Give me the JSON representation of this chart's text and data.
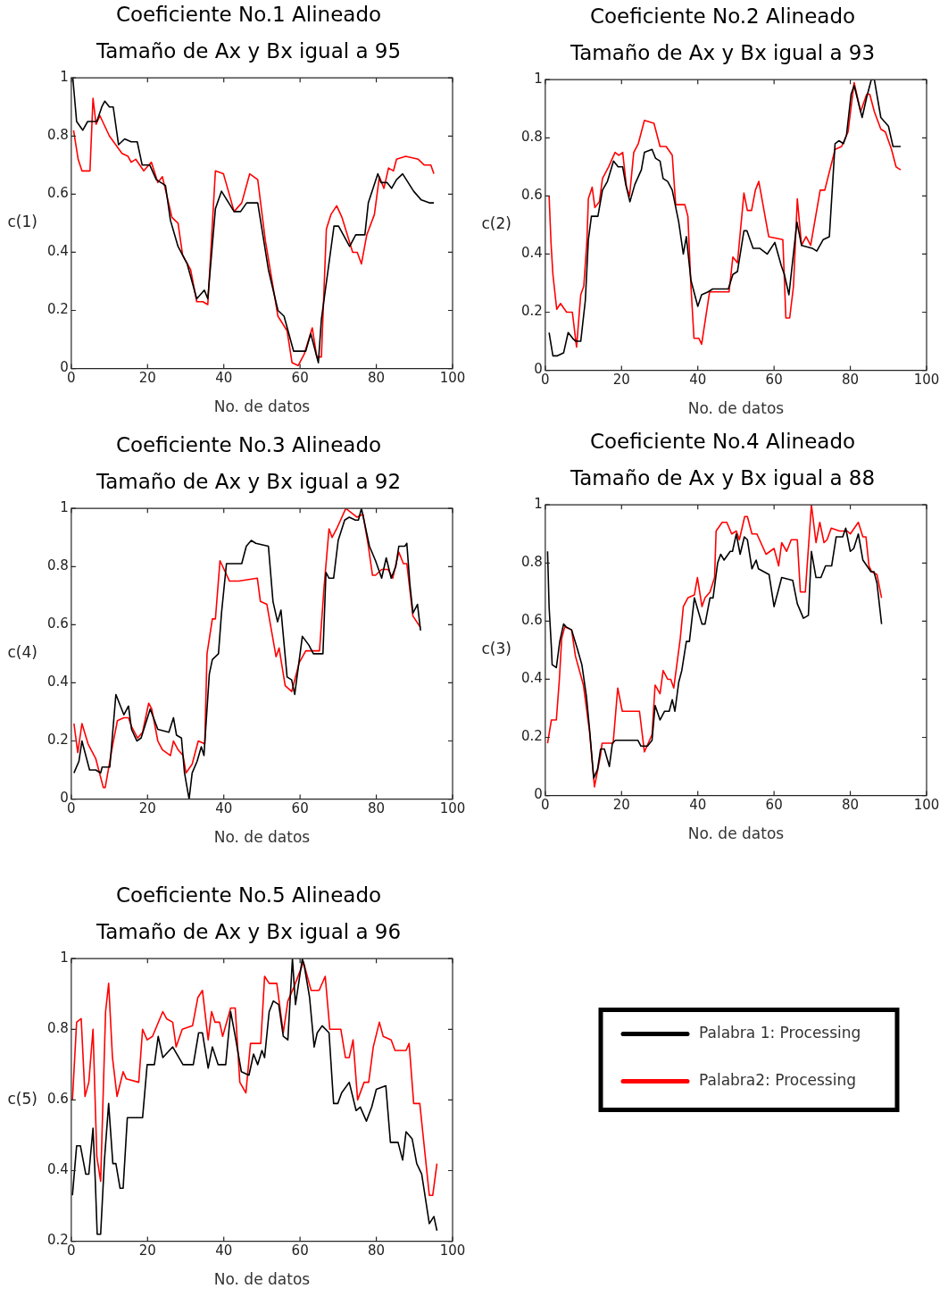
{
  "chart_data": [
    {
      "type": "line",
      "title": "Coeficiente No.1 Alineado",
      "subtitle": "Tamaño de Ax y Bx igual a 95",
      "xlabel": "No. de datos",
      "ylabel": "c(1)",
      "xlim": [
        0,
        100
      ],
      "xticks": [
        0,
        20,
        40,
        60,
        80,
        100
      ],
      "ylim": [
        0,
        1
      ],
      "yticks": [
        0,
        0.2,
        0.4,
        0.6,
        0.8,
        1
      ],
      "series": [
        {
          "color": "#000000",
          "x": [
            0.4,
            1.4,
            3.0,
            4.3,
            6.7,
            8,
            8.8,
            10,
            11,
            12.4,
            14,
            15.7,
            17.3,
            18.6,
            20.6,
            22.3,
            24.7,
            26,
            28,
            30.4,
            32.9,
            34.9,
            35.8,
            37.8,
            39.4,
            42.7,
            44.4,
            46,
            48.9,
            51.7,
            54.2,
            55.8,
            58.3,
            61.5,
            62.8,
            64.8,
            65.6,
            68.9,
            70.1,
            73,
            74.6,
            77,
            77.9,
            80.4,
            81.2,
            82.8,
            84,
            85.3,
            86.9,
            89.8,
            91.8,
            93.9,
            95.1
          ],
          "values": [
            1.0,
            0.85,
            0.82,
            0.85,
            0.85,
            0.9,
            0.92,
            0.9,
            0.9,
            0.77,
            0.79,
            0.78,
            0.78,
            0.7,
            0.7,
            0.65,
            0.63,
            0.51,
            0.42,
            0.36,
            0.24,
            0.27,
            0.24,
            0.55,
            0.61,
            0.54,
            0.54,
            0.57,
            0.57,
            0.34,
            0.2,
            0.18,
            0.06,
            0.06,
            0.12,
            0.02,
            0.17,
            0.49,
            0.49,
            0.42,
            0.46,
            0.46,
            0.57,
            0.67,
            0.64,
            0.64,
            0.62,
            0.65,
            0.67,
            0.61,
            0.58,
            0.57,
            0.57
          ]
        },
        {
          "color": "#ff0000",
          "x": [
            0.6,
            1.8,
            2.8,
            4.9,
            5.7,
            6.5,
            7.5,
            10,
            13.3,
            14.9,
            15.7,
            16.9,
            19,
            21,
            22.7,
            23.9,
            26.4,
            28,
            29.2,
            31.3,
            32.9,
            34.5,
            35.8,
            37.8,
            39.9,
            41,
            42.7,
            44.7,
            46.8,
            48.9,
            50.9,
            54.2,
            56.6,
            57.9,
            59.5,
            61.1,
            63.2,
            64.4,
            65.6,
            66.9,
            68.1,
            69.6,
            71,
            73.8,
            75,
            76.1,
            77.5,
            79.5,
            80.8,
            82,
            83.2,
            84.5,
            85.3,
            87.7,
            91,
            92.6,
            94.3,
            95.1
          ],
          "values": [
            0.82,
            0.72,
            0.68,
            0.68,
            0.93,
            0.84,
            0.87,
            0.8,
            0.74,
            0.73,
            0.71,
            0.72,
            0.68,
            0.71,
            0.64,
            0.66,
            0.52,
            0.5,
            0.39,
            0.34,
            0.23,
            0.23,
            0.22,
            0.68,
            0.67,
            0.62,
            0.54,
            0.57,
            0.67,
            0.65,
            0.44,
            0.18,
            0.13,
            0.02,
            0.01,
            0.05,
            0.14,
            0.04,
            0.04,
            0.48,
            0.53,
            0.56,
            0.52,
            0.4,
            0.4,
            0.36,
            0.46,
            0.53,
            0.66,
            0.62,
            0.69,
            0.68,
            0.72,
            0.73,
            0.72,
            0.7,
            0.7,
            0.67
          ]
        }
      ]
    },
    {
      "type": "line",
      "title": "Coeficiente No.2 Alineado",
      "subtitle": "Tamaño de Ax y Bx igual a 93",
      "xlabel": "No. de datos",
      "ylabel": "c(2)",
      "xlim": [
        0,
        100
      ],
      "xticks": [
        0,
        20,
        40,
        60,
        80,
        100
      ],
      "ylim": [
        0,
        1
      ],
      "yticks": [
        0,
        0.2,
        0.4,
        0.6,
        0.8,
        1
      ],
      "series": [
        {
          "color": "#000000",
          "x": [
            1,
            2,
            3.2,
            4.8,
            6,
            7.2,
            8,
            9.3,
            10.5,
            11.3,
            12.1,
            13.8,
            15,
            16.3,
            17.9,
            19.1,
            20.3,
            21.1,
            22.2,
            23.5,
            25.2,
            26,
            28,
            28.9,
            30.1,
            30.9,
            32.1,
            33.3,
            35,
            36.2,
            37,
            38.2,
            40,
            41,
            42.7,
            43.9,
            48,
            49.2,
            50.4,
            52.1,
            52.9,
            54.5,
            56.2,
            58.2,
            60.2,
            61.9,
            62.7,
            63.9,
            66,
            67.2,
            70,
            71.2,
            72.9,
            74.5,
            76,
            77,
            78.2,
            79,
            80.2,
            81,
            83.1,
            84.3,
            85.5,
            86.3,
            88,
            90,
            91.2,
            93.2
          ],
          "values": [
            0.13,
            0.05,
            0.05,
            0.06,
            0.13,
            0.11,
            0.1,
            0.1,
            0.24,
            0.45,
            0.53,
            0.53,
            0.62,
            0.65,
            0.72,
            0.7,
            0.7,
            0.64,
            0.58,
            0.64,
            0.69,
            0.75,
            0.76,
            0.73,
            0.72,
            0.66,
            0.65,
            0.62,
            0.51,
            0.4,
            0.46,
            0.31,
            0.22,
            0.26,
            0.27,
            0.28,
            0.28,
            0.33,
            0.34,
            0.48,
            0.48,
            0.42,
            0.42,
            0.4,
            0.44,
            0.36,
            0.33,
            0.26,
            0.51,
            0.43,
            0.42,
            0.41,
            0.45,
            0.46,
            0.78,
            0.79,
            0.78,
            0.81,
            0.95,
            0.98,
            0.87,
            0.94,
            1.0,
            1.0,
            0.87,
            0.84,
            0.77,
            0.77
          ]
        },
        {
          "color": "#ff0000",
          "x": [
            1,
            1.5,
            2,
            3,
            4,
            5.6,
            7.1,
            8.2,
            9.3,
            10.1,
            10.9,
            11.3,
            12.3,
            13,
            14.2,
            15,
            16.6,
            18.3,
            19.3,
            20.3,
            21.3,
            22.1,
            23.2,
            24.4,
            26,
            28.5,
            30.1,
            31.7,
            33.3,
            34.2,
            36.6,
            37.4,
            38.2,
            39,
            40.3,
            41,
            43.1,
            48.2,
            49.2,
            50.4,
            52.1,
            53,
            54.1,
            55.1,
            56,
            58.6,
            62.3,
            63.1,
            64.1,
            65.1,
            66.1,
            67.2,
            68.4,
            69.6,
            72.1,
            73.3,
            76,
            77.7,
            79.4,
            81,
            82.7,
            84.3,
            85.1,
            86.3,
            88,
            89.2,
            90.8,
            92,
            93.2
          ],
          "values": [
            0.6,
            0.44,
            0.33,
            0.21,
            0.23,
            0.2,
            0.2,
            0.08,
            0.26,
            0.29,
            0.44,
            0.59,
            0.63,
            0.56,
            0.58,
            0.66,
            0.7,
            0.75,
            0.74,
            0.75,
            0.63,
            0.6,
            0.75,
            0.78,
            0.86,
            0.85,
            0.77,
            0.77,
            0.74,
            0.57,
            0.57,
            0.53,
            0.29,
            0.11,
            0.11,
            0.09,
            0.27,
            0.27,
            0.39,
            0.37,
            0.61,
            0.55,
            0.55,
            0.62,
            0.65,
            0.46,
            0.45,
            0.18,
            0.18,
            0.29,
            0.59,
            0.43,
            0.46,
            0.43,
            0.62,
            0.62,
            0.76,
            0.77,
            0.82,
            0.99,
            0.89,
            0.95,
            0.95,
            0.89,
            0.83,
            0.82,
            0.76,
            0.7,
            0.69
          ]
        }
      ]
    },
    {
      "type": "line",
      "title": "Coeficiente No.3 Alineado",
      "subtitle": "Tamaño de Ax y Bx igual a 92",
      "xlabel": "No. de datos",
      "ylabel": "c(4)",
      "xlim": [
        0,
        100
      ],
      "xticks": [
        0,
        20,
        40,
        60,
        80,
        100
      ],
      "ylim": [
        0,
        1
      ],
      "yticks": [
        0,
        0.2,
        0.4,
        0.6,
        0.8,
        1
      ],
      "series": [
        {
          "color": "#000000",
          "x": [
            0.7,
            2,
            2.8,
            4.8,
            6.4,
            7.7,
            8.1,
            10.1,
            11.7,
            13.8,
            15,
            15.8,
            17.2,
            18.3,
            20.7,
            22.7,
            25.6,
            26.8,
            27.6,
            28.9,
            29.7,
            30.9,
            31.7,
            33,
            34.1,
            34.8,
            36.2,
            37,
            38.6,
            39.4,
            40.7,
            42.7,
            44.7,
            45.9,
            47.2,
            48.4,
            51.7,
            52.9,
            54.1,
            55,
            56.6,
            57.8,
            58.6,
            60.6,
            62.3,
            63.5,
            66,
            66.8,
            67.6,
            68.8,
            70,
            71.7,
            72.9,
            74.5,
            75.3,
            76.1,
            78.2,
            79.8,
            81.4,
            82.6,
            83.9,
            85.1,
            85.9,
            87.5,
            88,
            88.8,
            89.6,
            90.8,
            91.6
          ],
          "values": [
            0.09,
            0.13,
            0.2,
            0.1,
            0.1,
            0.09,
            0.11,
            0.11,
            0.36,
            0.29,
            0.32,
            0.24,
            0.2,
            0.21,
            0.31,
            0.24,
            0.23,
            0.28,
            0.22,
            0.21,
            0.09,
            0.0,
            0.09,
            0.13,
            0.18,
            0.15,
            0.43,
            0.48,
            0.5,
            0.64,
            0.81,
            0.81,
            0.81,
            0.87,
            0.89,
            0.88,
            0.87,
            0.68,
            0.61,
            0.65,
            0.42,
            0.41,
            0.36,
            0.56,
            0.53,
            0.5,
            0.5,
            0.78,
            0.76,
            0.76,
            0.89,
            0.96,
            0.97,
            0.96,
            0.96,
            1.0,
            0.87,
            0.82,
            0.76,
            0.83,
            0.76,
            0.8,
            0.87,
            0.87,
            0.88,
            0.74,
            0.64,
            0.67,
            0.58
          ]
        },
        {
          "color": "#ff0000",
          "x": [
            0.7,
            1.7,
            2.8,
            4.4,
            6.4,
            8.4,
            8.9,
            10.9,
            12.1,
            13.8,
            15,
            15.8,
            17.4,
            18.7,
            20.3,
            21.1,
            22.7,
            23.9,
            26,
            26.8,
            28,
            29.3,
            30.1,
            31.7,
            33.3,
            35,
            35.6,
            37,
            37.8,
            39,
            41.5,
            43.9,
            48.8,
            49.6,
            51.3,
            53.7,
            54.5,
            56.1,
            57.8,
            59.8,
            61.5,
            65.1,
            66.3,
            67.6,
            68.4,
            69.6,
            72,
            74.9,
            76.5,
            77.8,
            79,
            79.8,
            81.4,
            83.1,
            84.3,
            85.9,
            87.1,
            88,
            89.6,
            91.6
          ],
          "values": [
            0.26,
            0.16,
            0.26,
            0.19,
            0.14,
            0.04,
            0.04,
            0.19,
            0.27,
            0.28,
            0.28,
            0.25,
            0.21,
            0.23,
            0.33,
            0.31,
            0.2,
            0.17,
            0.15,
            0.2,
            0.17,
            0.15,
            0.09,
            0.12,
            0.2,
            0.19,
            0.5,
            0.62,
            0.62,
            0.82,
            0.75,
            0.75,
            0.76,
            0.68,
            0.67,
            0.49,
            0.52,
            0.39,
            0.37,
            0.47,
            0.51,
            0.51,
            0.73,
            0.93,
            0.9,
            0.93,
            1.0,
            0.97,
            0.98,
            0.88,
            0.77,
            0.77,
            0.79,
            0.79,
            0.76,
            0.85,
            0.81,
            0.81,
            0.63,
            0.59
          ]
        }
      ]
    },
    {
      "type": "line",
      "title": "Coeficiente No.4 Alineado",
      "subtitle": "Tamaño de Ax y Bx igual a 88",
      "xlabel": "No. de datos",
      "ylabel": "c(3)",
      "xlim": [
        0,
        100
      ],
      "xticks": [
        0,
        20,
        40,
        60,
        80,
        100
      ],
      "ylim": [
        0,
        1
      ],
      "yticks": [
        0,
        0.2,
        0.4,
        0.6,
        0.8,
        1
      ],
      "series": [
        {
          "color": "#000000",
          "x": [
            0.6,
            1,
            1.6,
            1.8,
            2.9,
            3.8,
            4.8,
            5.5,
            6.9,
            8.3,
            9.6,
            10.8,
            11.6,
            12.7,
            13.7,
            14.5,
            15.5,
            16.8,
            17.6,
            18.4,
            24.3,
            25.1,
            26.8,
            28,
            28.8,
            30.1,
            31.3,
            32.5,
            33.3,
            34,
            35,
            35.8,
            37,
            37.8,
            39.1,
            41.1,
            41.9,
            43.2,
            44,
            45.2,
            46,
            46.9,
            48.5,
            49.1,
            50.1,
            51.1,
            52.2,
            53,
            54.2,
            55.3,
            55.9,
            58.7,
            60,
            62,
            64.9,
            66.1,
            67.7,
            69,
            69.8,
            71,
            72.3,
            73.5,
            75.1,
            76.3,
            78,
            78.8,
            80,
            80.9,
            82.1,
            83.3,
            85.4,
            86.2,
            87,
            88.2
          ],
          "values": [
            0.84,
            0.65,
            0.51,
            0.45,
            0.44,
            0.53,
            0.59,
            0.58,
            0.57,
            0.51,
            0.45,
            0.34,
            0.23,
            0.06,
            0.09,
            0.16,
            0.16,
            0.1,
            0.18,
            0.19,
            0.19,
            0.17,
            0.17,
            0.19,
            0.31,
            0.26,
            0.29,
            0.29,
            0.33,
            0.29,
            0.39,
            0.43,
            0.53,
            0.53,
            0.68,
            0.59,
            0.59,
            0.68,
            0.68,
            0.8,
            0.83,
            0.81,
            0.84,
            0.84,
            0.9,
            0.83,
            0.89,
            0.88,
            0.78,
            0.81,
            0.78,
            0.76,
            0.65,
            0.75,
            0.74,
            0.66,
            0.61,
            0.62,
            0.84,
            0.75,
            0.75,
            0.79,
            0.79,
            0.89,
            0.89,
            0.92,
            0.84,
            0.85,
            0.9,
            0.81,
            0.77,
            0.77,
            0.73,
            0.59
          ]
        },
        {
          "color": "#ff0000",
          "x": [
            0.6,
            1.6,
            2.9,
            3.7,
            4.3,
            5.1,
            6.9,
            7.9,
            10,
            11.6,
            12.9,
            14.5,
            14.9,
            17.8,
            19,
            20.2,
            24.7,
            26,
            28,
            28.8,
            30.1,
            30.9,
            32.1,
            32.9,
            33.7,
            35.4,
            36.2,
            37.4,
            39.1,
            39.9,
            41.1,
            41.9,
            43.2,
            44.4,
            44.8,
            46.4,
            47.6,
            48.9,
            50.1,
            50.9,
            52.3,
            53,
            54.2,
            55.5,
            57.9,
            60,
            61.2,
            62,
            63.3,
            64.5,
            66.1,
            66.9,
            68.2,
            69.8,
            71,
            72,
            73.1,
            73.9,
            75,
            77.2,
            79.2,
            80,
            82.1,
            83.3,
            84.1,
            84.9,
            85.6,
            87,
            88.2
          ],
          "values": [
            0.18,
            0.26,
            0.26,
            0.4,
            0.54,
            0.58,
            0.57,
            0.48,
            0.38,
            0.22,
            0.03,
            0.14,
            0.18,
            0.18,
            0.37,
            0.29,
            0.29,
            0.15,
            0.21,
            0.38,
            0.35,
            0.43,
            0.4,
            0.4,
            0.37,
            0.54,
            0.65,
            0.68,
            0.69,
            0.75,
            0.65,
            0.68,
            0.7,
            0.75,
            0.91,
            0.94,
            0.94,
            0.9,
            0.91,
            0.88,
            0.96,
            0.96,
            0.9,
            0.9,
            0.83,
            0.85,
            0.79,
            0.87,
            0.84,
            0.88,
            0.88,
            0.7,
            0.7,
            1.0,
            0.87,
            0.94,
            0.87,
            0.88,
            0.92,
            0.91,
            0.91,
            0.9,
            0.94,
            0.89,
            0.89,
            0.79,
            0.77,
            0.76,
            0.68
          ]
        }
      ]
    },
    {
      "type": "line",
      "title": "Coeficiente No.5 Alineado",
      "subtitle": "Tamaño de Ax y Bx igual a 96",
      "xlabel": "No. de datos",
      "ylabel": "c(5)",
      "xlim": [
        0,
        100
      ],
      "xticks": [
        0,
        20,
        40,
        60,
        80,
        100
      ],
      "ylim": [
        0.2,
        1
      ],
      "yticks": [
        0.2,
        0.4,
        0.6,
        0.8,
        1
      ],
      "legend": "right",
      "series": [
        {
          "name": "Palabra 1: Processing",
          "color": "#000000",
          "x": [
            0.3,
            1.4,
            2.4,
            3.8,
            4.6,
            5.7,
            6.3,
            6.8,
            7.7,
            8.7,
            9.8,
            10.9,
            11.7,
            12.8,
            13.6,
            14.7,
            18.7,
            19.9,
            21.8,
            22.8,
            24,
            26.6,
            29.3,
            32,
            33.4,
            34.4,
            35.9,
            37,
            38.5,
            40.5,
            41.8,
            43,
            44.6,
            46.6,
            47.8,
            48.9,
            50,
            50.7,
            51.9,
            53,
            54.4,
            55.6,
            56.8,
            58,
            58.8,
            60.6,
            61.1,
            62.5,
            63.7,
            64.5,
            65.8,
            67.6,
            68.8,
            69.9,
            70.9,
            72.9,
            74.7,
            75.8,
            77.4,
            78.8,
            80,
            82.5,
            83.7,
            85.7,
            86.9,
            87.8,
            89.4,
            90.6,
            91.9,
            93.9,
            95.1,
            95.9
          ],
          "values": [
            0.33,
            0.47,
            0.47,
            0.39,
            0.39,
            0.52,
            0.37,
            0.22,
            0.22,
            0.43,
            0.59,
            0.42,
            0.42,
            0.35,
            0.35,
            0.55,
            0.55,
            0.7,
            0.7,
            0.78,
            0.72,
            0.75,
            0.7,
            0.7,
            0.79,
            0.79,
            0.69,
            0.75,
            0.7,
            0.7,
            0.85,
            0.78,
            0.68,
            0.67,
            0.73,
            0.7,
            0.74,
            0.72,
            0.85,
            0.88,
            0.87,
            0.78,
            0.77,
            1.0,
            0.87,
            1.0,
            0.98,
            0.89,
            0.75,
            0.79,
            0.81,
            0.79,
            0.59,
            0.59,
            0.62,
            0.65,
            0.57,
            0.58,
            0.54,
            0.58,
            0.63,
            0.64,
            0.48,
            0.48,
            0.43,
            0.51,
            0.49,
            0.42,
            0.39,
            0.25,
            0.27,
            0.23
          ]
        },
        {
          "name": "Palabra2: Processing",
          "color": "#ff0000",
          "x": [
            0.3,
            1.4,
            2.6,
            3.6,
            4.6,
            5.7,
            6.7,
            7.7,
            9,
            9.8,
            10.8,
            12,
            13.6,
            14.4,
            17.7,
            18.7,
            19.9,
            21.3,
            24,
            25,
            26.6,
            27.5,
            29.1,
            31.8,
            33.2,
            34.4,
            35.9,
            36.8,
            37.7,
            38.9,
            39.7,
            41.8,
            43,
            44.2,
            45.8,
            47,
            49.7,
            50.7,
            51.9,
            53.9,
            55.6,
            56.8,
            58.4,
            60.9,
            62.9,
            65,
            66.6,
            67.8,
            70.7,
            71.9,
            72.9,
            73.9,
            75.1,
            76.8,
            78,
            79.2,
            80.8,
            81.8,
            83.9,
            84.9,
            87.8,
            88.6,
            89.8,
            91.4,
            93.9,
            94.8,
            95.9
          ],
          "values": [
            0.6,
            0.82,
            0.83,
            0.61,
            0.65,
            0.8,
            0.44,
            0.37,
            0.85,
            0.93,
            0.72,
            0.61,
            0.68,
            0.66,
            0.65,
            0.8,
            0.77,
            0.78,
            0.85,
            0.83,
            0.82,
            0.75,
            0.8,
            0.81,
            0.89,
            0.91,
            0.77,
            0.85,
            0.82,
            0.82,
            0.78,
            0.86,
            0.86,
            0.65,
            0.62,
            0.76,
            0.76,
            0.95,
            0.93,
            0.93,
            0.79,
            0.88,
            0.92,
            0.99,
            0.91,
            0.91,
            0.95,
            0.8,
            0.8,
            0.72,
            0.72,
            0.77,
            0.6,
            0.65,
            0.65,
            0.75,
            0.82,
            0.78,
            0.77,
            0.74,
            0.74,
            0.76,
            0.59,
            0.59,
            0.33,
            0.33,
            0.42
          ]
        }
      ]
    }
  ]
}
